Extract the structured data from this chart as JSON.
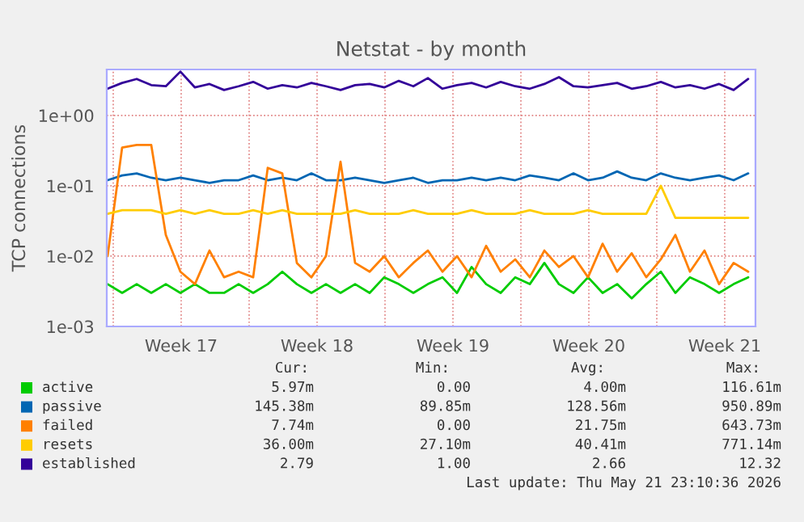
{
  "chart_data": {
    "type": "line",
    "title": "Netstat - by month",
    "ylabel": "TCP connections",
    "x": [
      "2026-04-19T17:00",
      "2026-04-20T11:00",
      "2026-04-21T05:00",
      "2026-04-21T23:00",
      "2026-04-22T17:00",
      "2026-04-23T11:00",
      "2026-04-24T05:00",
      "2026-04-24T23:00",
      "2026-04-25T17:00",
      "2026-04-26T11:00",
      "2026-04-27T05:00",
      "2026-04-27T23:00",
      "2026-04-28T17:00",
      "2026-04-29T11:00",
      "2026-04-30T05:00",
      "2026-04-30T23:00",
      "2026-05-01T17:00",
      "2026-05-02T11:00",
      "2026-05-03T05:00",
      "2026-05-03T23:00",
      "2026-05-04T17:00",
      "2026-05-05T11:00",
      "2026-05-06T05:00",
      "2026-05-06T23:00",
      "2026-05-07T17:00",
      "2026-05-08T11:00",
      "2026-05-09T05:00",
      "2026-05-09T23:00",
      "2026-05-10T17:00",
      "2026-05-11T11:00",
      "2026-05-12T05:00",
      "2026-05-12T23:00",
      "2026-05-13T17:00",
      "2026-05-14T11:00",
      "2026-05-15T05:00",
      "2026-05-15T23:00",
      "2026-05-16T17:00",
      "2026-05-17T11:00",
      "2026-05-18T05:00",
      "2026-05-18T23:00",
      "2026-05-19T17:00",
      "2026-05-20T11:00",
      "2026-05-21T05:00",
      "2026-05-21T23:00",
      "2026-05-22T17:00"
    ],
    "series": [
      {
        "name": "active",
        "color": "#00cc00",
        "values": [
          0.004,
          0.003,
          0.004,
          0.003,
          0.004,
          0.003,
          0.004,
          0.003,
          0.003,
          0.004,
          0.003,
          0.004,
          0.006,
          0.004,
          0.003,
          0.004,
          0.003,
          0.004,
          0.003,
          0.005,
          0.004,
          0.003,
          0.004,
          0.005,
          0.003,
          0.007,
          0.004,
          0.003,
          0.005,
          0.004,
          0.008,
          0.004,
          0.003,
          0.005,
          0.003,
          0.004,
          0.0025,
          0.004,
          0.006,
          0.003,
          0.005,
          0.004,
          0.003,
          0.004,
          0.005
        ]
      },
      {
        "name": "passive",
        "color": "#0066b3",
        "values": [
          0.12,
          0.14,
          0.15,
          0.13,
          0.12,
          0.13,
          0.12,
          0.11,
          0.12,
          0.12,
          0.14,
          0.12,
          0.13,
          0.12,
          0.15,
          0.12,
          0.12,
          0.13,
          0.12,
          0.11,
          0.12,
          0.13,
          0.11,
          0.12,
          0.12,
          0.13,
          0.12,
          0.13,
          0.12,
          0.14,
          0.13,
          0.12,
          0.15,
          0.12,
          0.13,
          0.16,
          0.13,
          0.12,
          0.15,
          0.13,
          0.12,
          0.13,
          0.14,
          0.12,
          0.15
        ]
      },
      {
        "name": "failed",
        "color": "#ff8000",
        "values": [
          0.01,
          0.35,
          0.38,
          0.38,
          0.02,
          0.006,
          0.004,
          0.012,
          0.005,
          0.006,
          0.005,
          0.18,
          0.15,
          0.008,
          0.005,
          0.01,
          0.22,
          0.008,
          0.006,
          0.01,
          0.005,
          0.008,
          0.012,
          0.006,
          0.01,
          0.005,
          0.014,
          0.006,
          0.009,
          0.005,
          0.012,
          0.007,
          0.01,
          0.005,
          0.015,
          0.006,
          0.011,
          0.005,
          0.009,
          0.02,
          0.006,
          0.012,
          0.004,
          0.008,
          0.006
        ]
      },
      {
        "name": "resets",
        "color": "#ffcc00",
        "values": [
          0.04,
          0.045,
          0.045,
          0.045,
          0.04,
          0.045,
          0.04,
          0.045,
          0.04,
          0.04,
          0.045,
          0.04,
          0.045,
          0.04,
          0.04,
          0.04,
          0.04,
          0.045,
          0.04,
          0.04,
          0.04,
          0.045,
          0.04,
          0.04,
          0.04,
          0.045,
          0.04,
          0.04,
          0.04,
          0.045,
          0.04,
          0.04,
          0.04,
          0.045,
          0.04,
          0.04,
          0.04,
          0.04,
          0.1,
          0.035,
          0.035,
          0.035,
          0.035,
          0.035,
          0.035
        ]
      },
      {
        "name": "established",
        "color": "#330099",
        "values": [
          2.4,
          2.9,
          3.3,
          2.7,
          2.6,
          4.2,
          2.5,
          2.8,
          2.3,
          2.6,
          3.0,
          2.4,
          2.7,
          2.5,
          2.9,
          2.6,
          2.3,
          2.7,
          2.8,
          2.5,
          3.1,
          2.6,
          3.4,
          2.4,
          2.7,
          2.9,
          2.5,
          3.0,
          2.6,
          2.4,
          2.8,
          3.5,
          2.6,
          2.5,
          2.7,
          2.9,
          2.4,
          2.6,
          3.0,
          2.5,
          2.7,
          2.4,
          2.8,
          2.3,
          3.3
        ]
      }
    ],
    "log": "y",
    "xlim": [
      "2026-04-19T16:00",
      "2026-05-23T02:00"
    ],
    "xticks": [
      {
        "value": "2026-04-20",
        "label": null
      },
      {
        "value": "2026-04-23T12:00",
        "label": "Week 17"
      },
      {
        "value": "2026-04-27",
        "label": null
      },
      {
        "value": "2026-04-30T12:00",
        "label": "Week 18"
      },
      {
        "value": "2026-05-04",
        "label": null
      },
      {
        "value": "2026-05-07T12:00",
        "label": "Week 19"
      },
      {
        "value": "2026-05-11",
        "label": null
      },
      {
        "value": "2026-05-14T12:00",
        "label": "Week 20"
      },
      {
        "value": "2026-05-18",
        "label": null
      },
      {
        "value": "2026-05-21T12:00",
        "label": "Week 21"
      }
    ],
    "ylim": [
      0.001,
      4.5
    ],
    "yticks": [
      {
        "value": 0.001,
        "label": "1e-03"
      },
      {
        "value": 0.01,
        "label": "1e-02"
      },
      {
        "value": 0.1,
        "label": "1e-01"
      },
      {
        "value": 1,
        "label": "1e+00"
      }
    ],
    "grid": true,
    "legend": "bottom",
    "annotations": [
      "Cur:",
      "Min:",
      "Avg:",
      "Max:",
      "5.97m",
      "0.00",
      "4.00m",
      "116.61m",
      "145.38m",
      "89.85m",
      "128.56m",
      "950.89m",
      "7.74m",
      "0.00",
      "21.75m",
      "643.73m",
      "36.00m",
      "27.10m",
      "40.41m",
      "771.14m",
      "2.79",
      "1.00",
      "2.66",
      "12.32",
      "Last update: Thu May 21 23:10:36 2026"
    ]
  }
}
